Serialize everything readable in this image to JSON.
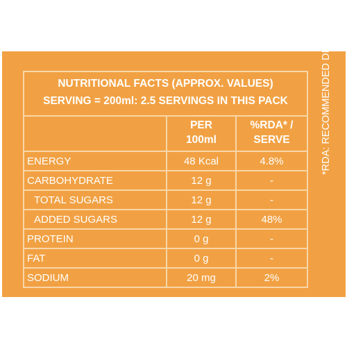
{
  "title": {
    "line1": "NUTRITIONAL FACTS  (APPROX. VALUES)",
    "line2": "SERVING = 200ml: 2.5 SERVINGS IN THIS PACK"
  },
  "columns": {
    "per": [
      "PER",
      "100ml"
    ],
    "rda": [
      "%RDA* /",
      "SERVE"
    ]
  },
  "rows": [
    {
      "name": "ENERGY",
      "value": "48 Kcal",
      "rda": "4.8%",
      "indent": false
    },
    {
      "name": "CARBOHYDRATE",
      "value": "12 g",
      "rda": "-",
      "indent": false
    },
    {
      "name": "TOTAL SUGARS",
      "value": "12 g",
      "rda": "-",
      "indent": true
    },
    {
      "name": "ADDED SUGARS",
      "value": "12 g",
      "rda": "48%",
      "indent": true
    },
    {
      "name": "PROTEIN",
      "value": "0 g",
      "rda": "-",
      "indent": false
    },
    {
      "name": "FAT",
      "value": "0 g",
      "rda": "-",
      "indent": false
    },
    {
      "name": "SODIUM",
      "value": "20 mg",
      "rda": "2%",
      "indent": false
    }
  ],
  "footnote": "*RDA: RECOMMENDED DIETARY ALLOWANCE",
  "colors": {
    "background": "#f1a143",
    "lines": "#f9d6a9",
    "text": "#ffffff"
  }
}
